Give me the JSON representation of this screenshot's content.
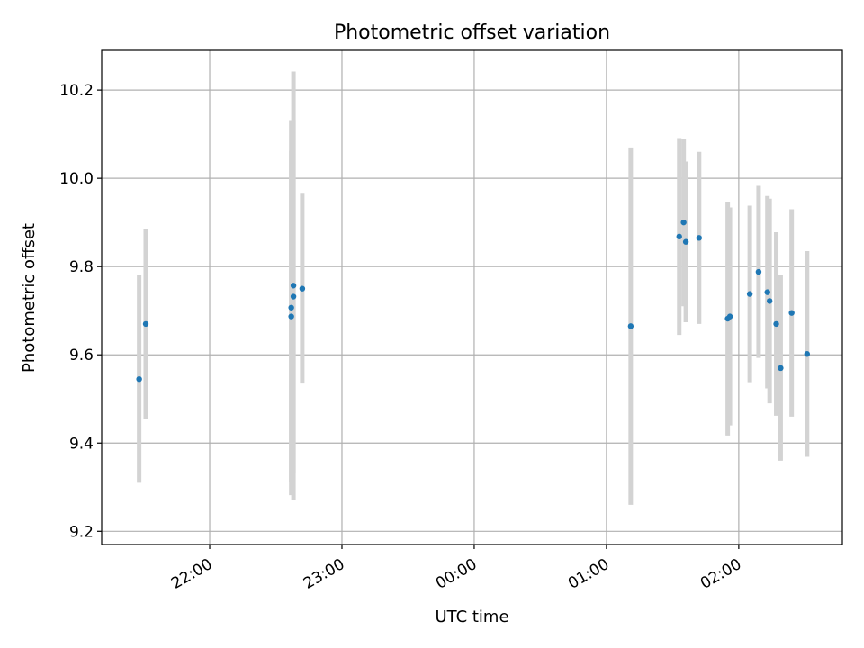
{
  "chart_data": {
    "type": "scatter",
    "title": "Photometric offset variation",
    "xlabel": "UTC time",
    "ylabel": "Photometric offset",
    "xlim": [
      "21:11",
      "02:47"
    ],
    "ylim": [
      9.17,
      10.29
    ],
    "xticks": [
      "22:00",
      "23:00",
      "00:00",
      "01:00",
      "02:00"
    ],
    "yticks": [
      "9.2",
      "9.4",
      "9.6",
      "9.8",
      "10.0",
      "10.2"
    ],
    "grid": true,
    "marker_color": "#1f77b4",
    "errorbar_color": "#d3d3d3",
    "points": [
      {
        "x": "21:28",
        "y": 9.545,
        "yerr": 0.235
      },
      {
        "x": "21:31",
        "y": 9.67,
        "yerr": 0.215
      },
      {
        "x": "22:37",
        "y": 9.687,
        "yerr": 0.375
      },
      {
        "x": "22:37",
        "y": 9.707,
        "yerr": 0.425
      },
      {
        "x": "22:38",
        "y": 9.757,
        "yerr": 0.485
      },
      {
        "x": "22:38",
        "y": 9.732,
        "yerr": 0.4
      },
      {
        "x": "22:42",
        "y": 9.75,
        "yerr": 0.215
      },
      {
        "x": "01:11",
        "y": 9.665,
        "yerr": 0.405
      },
      {
        "x": "01:33",
        "y": 9.868,
        "yerr": 0.223
      },
      {
        "x": "01:35",
        "y": 9.9,
        "yerr": 0.19
      },
      {
        "x": "01:36",
        "y": 9.856,
        "yerr": 0.182
      },
      {
        "x": "01:42",
        "y": 9.865,
        "yerr": 0.195
      },
      {
        "x": "01:55",
        "y": 9.682,
        "yerr": 0.265
      },
      {
        "x": "01:56",
        "y": 9.687,
        "yerr": 0.247
      },
      {
        "x": "02:05",
        "y": 9.738,
        "yerr": 0.2
      },
      {
        "x": "02:09",
        "y": 9.788,
        "yerr": 0.195
      },
      {
        "x": "02:13",
        "y": 9.742,
        "yerr": 0.218
      },
      {
        "x": "02:14",
        "y": 9.722,
        "yerr": 0.232
      },
      {
        "x": "02:17",
        "y": 9.67,
        "yerr": 0.208
      },
      {
        "x": "02:19",
        "y": 9.57,
        "yerr": 0.21
      },
      {
        "x": "02:24",
        "y": 9.695,
        "yerr": 0.235
      },
      {
        "x": "02:31",
        "y": 9.602,
        "yerr": 0.233
      }
    ]
  }
}
